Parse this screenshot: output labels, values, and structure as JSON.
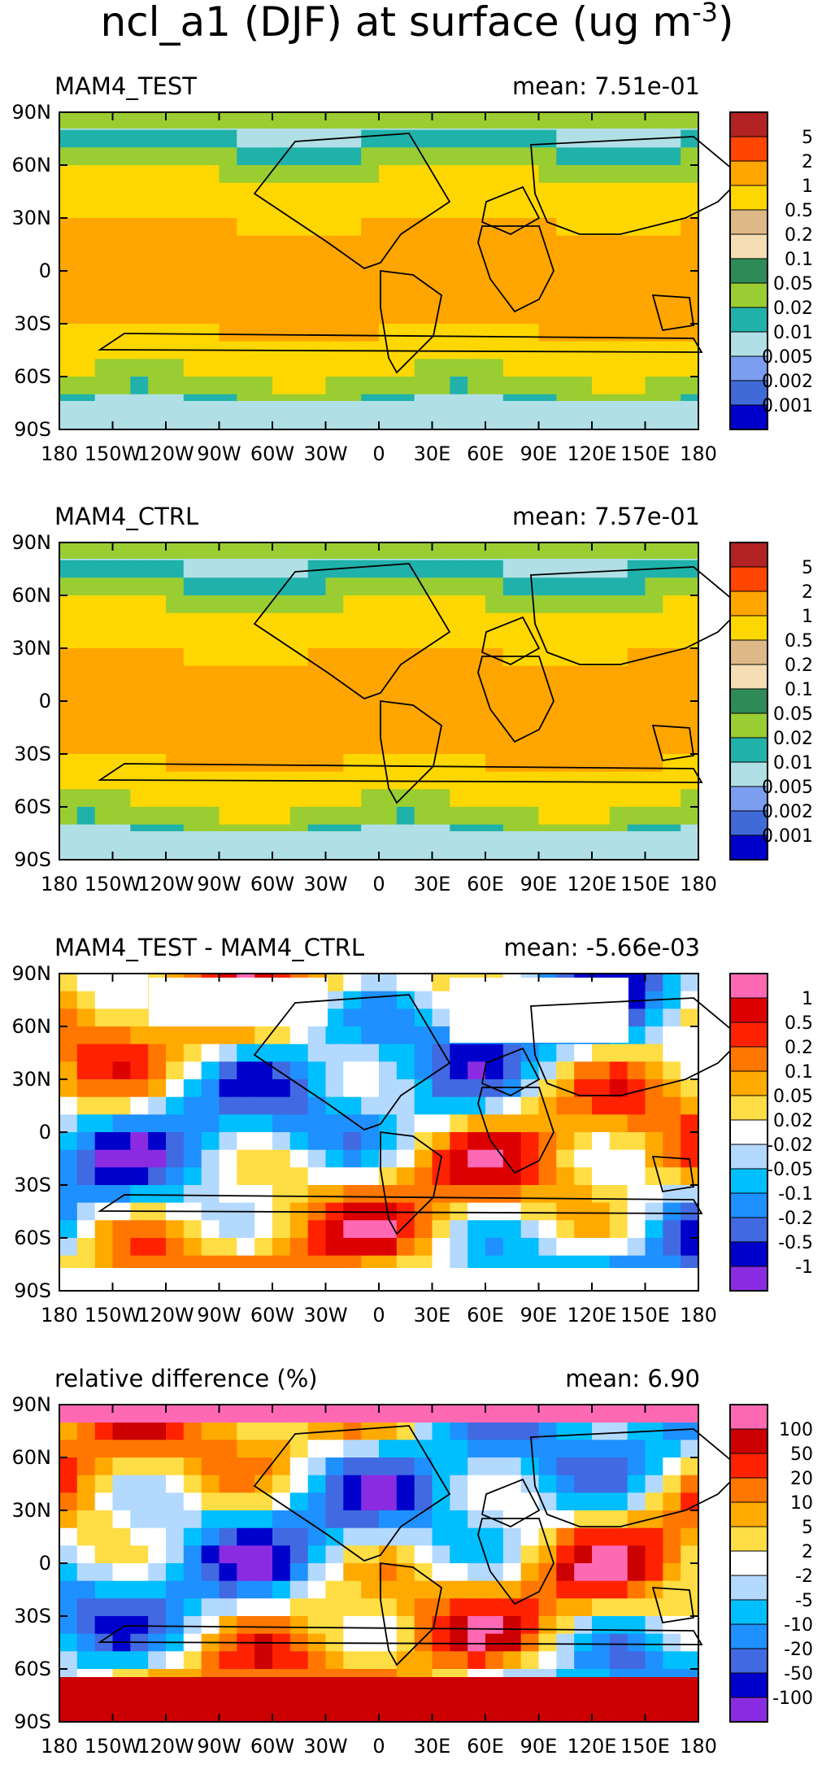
{
  "title": {
    "base": "ncl_a1 (DJF) at surface (ug m",
    "exp": "-3",
    "close": ")"
  },
  "axes": {
    "lat_ticks": [
      "90N",
      "60N",
      "30N",
      "0",
      "30S",
      "60S",
      "90S"
    ],
    "lon_ticks": [
      "180",
      "150W",
      "120W",
      "90W",
      "60W",
      "30W",
      "0",
      "30E",
      "60E",
      "90E",
      "120E",
      "150E",
      "180"
    ]
  },
  "chart_data": [
    {
      "type": "heatmap",
      "title": "MAM4_TEST",
      "mean_label": "mean: 7.51e-01",
      "xlim": [
        -180,
        180
      ],
      "ylim": [
        -90,
        90
      ],
      "colorbar": {
        "levels": [
          "5",
          "2",
          "1",
          "0.5",
          "0.2",
          "0.1",
          "0.05",
          "0.02",
          "0.01",
          "0.005",
          "0.002",
          "0.001"
        ],
        "colors": [
          "#b22222",
          "#ff4500",
          "#ffa500",
          "#ffd700",
          "#deb887",
          "#f5deb3",
          "#2e8b57",
          "#9acd32",
          "#20b2aa",
          "#b0e0e6",
          "#7b9ef0",
          "#3f6ad8",
          "#0000cd"
        ]
      }
    },
    {
      "type": "heatmap",
      "title": "MAM4_CTRL",
      "mean_label": "mean: 7.57e-01",
      "xlim": [
        -180,
        180
      ],
      "ylim": [
        -90,
        90
      ],
      "colorbar": {
        "levels": [
          "5",
          "2",
          "1",
          "0.5",
          "0.2",
          "0.1",
          "0.05",
          "0.02",
          "0.01",
          "0.005",
          "0.002",
          "0.001"
        ],
        "colors": [
          "#b22222",
          "#ff4500",
          "#ffa500",
          "#ffd700",
          "#deb887",
          "#f5deb3",
          "#2e8b57",
          "#9acd32",
          "#20b2aa",
          "#b0e0e6",
          "#7b9ef0",
          "#3f6ad8",
          "#0000cd"
        ]
      }
    },
    {
      "type": "heatmap",
      "title": "MAM4_TEST - MAM4_CTRL",
      "mean_label": "mean: -5.66e-03",
      "xlim": [
        -180,
        180
      ],
      "ylim": [
        -90,
        90
      ],
      "colorbar": {
        "levels": [
          "1",
          "0.5",
          "0.2",
          "0.1",
          "0.05",
          "0.02",
          "-0.02",
          "-0.05",
          "-0.1",
          "-0.2",
          "-0.5",
          "-1"
        ],
        "colors": [
          "#ff69b4",
          "#dd0000",
          "#ff2200",
          "#ff7700",
          "#ffaa00",
          "#ffdd44",
          "#ffffff",
          "#b3d9ff",
          "#00bfff",
          "#1e90ff",
          "#4169e1",
          "#0000cd",
          "#8a2be2"
        ]
      }
    },
    {
      "type": "heatmap",
      "title": "relative difference (%)",
      "mean_label": "mean:  6.90",
      "xlim": [
        -180,
        180
      ],
      "ylim": [
        -90,
        90
      ],
      "colorbar": {
        "levels": [
          "100",
          "50",
          "20",
          "10",
          "5",
          "2",
          "-2",
          "-5",
          "-10",
          "-20",
          "-50",
          "-100"
        ],
        "colors": [
          "#ff69b4",
          "#cc0000",
          "#ff2200",
          "#ff7700",
          "#ffaa00",
          "#ffdd44",
          "#ffffff",
          "#b3d9ff",
          "#00bfff",
          "#1e90ff",
          "#4169e1",
          "#0000cd",
          "#8a2be2"
        ]
      }
    }
  ]
}
